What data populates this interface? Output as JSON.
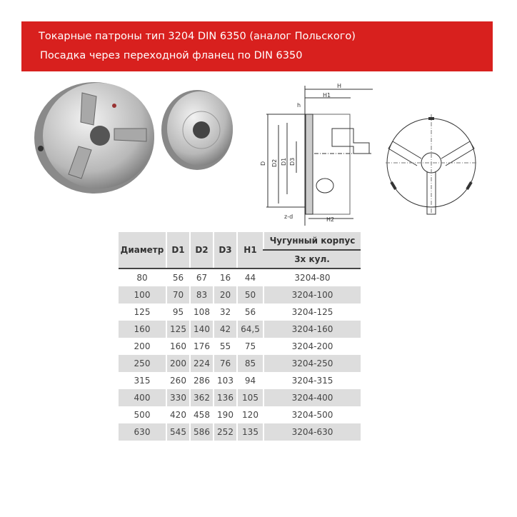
{
  "banner": {
    "line1": "Токарные патроны тип 3204 DIN 6350 (аналог Польского)",
    "line2": "Посадка через переходной фланец по DIN 6350",
    "color": "#d8201e"
  },
  "drawing_labels": {
    "H": "H",
    "H1": "H1",
    "H2": "H2",
    "h": "h",
    "D": "D",
    "D1": "D1",
    "D2": "D2",
    "D3": "D3",
    "zd": "z-d"
  },
  "table": {
    "headers": [
      "Диаметр",
      "D1",
      "D2",
      "D3",
      "H1",
      "Чугунный корпус"
    ],
    "subheader": "3х кул.",
    "rows": [
      [
        "80",
        "56",
        "67",
        "16",
        "44",
        "3204-80"
      ],
      [
        "100",
        "70",
        "83",
        "20",
        "50",
        "3204-100"
      ],
      [
        "125",
        "95",
        "108",
        "32",
        "56",
        "3204-125"
      ],
      [
        "160",
        "125",
        "140",
        "42",
        "64,5",
        "3204-160"
      ],
      [
        "200",
        "160",
        "176",
        "55",
        "75",
        "3204-200"
      ],
      [
        "250",
        "200",
        "224",
        "76",
        "85",
        "3204-250"
      ],
      [
        "315",
        "260",
        "286",
        "103",
        "94",
        "3204-315"
      ],
      [
        "400",
        "330",
        "362",
        "136",
        "105",
        "3204-400"
      ],
      [
        "500",
        "420",
        "458",
        "190",
        "120",
        "3204-500"
      ],
      [
        "630",
        "545",
        "586",
        "252",
        "135",
        "3204-630"
      ]
    ]
  }
}
